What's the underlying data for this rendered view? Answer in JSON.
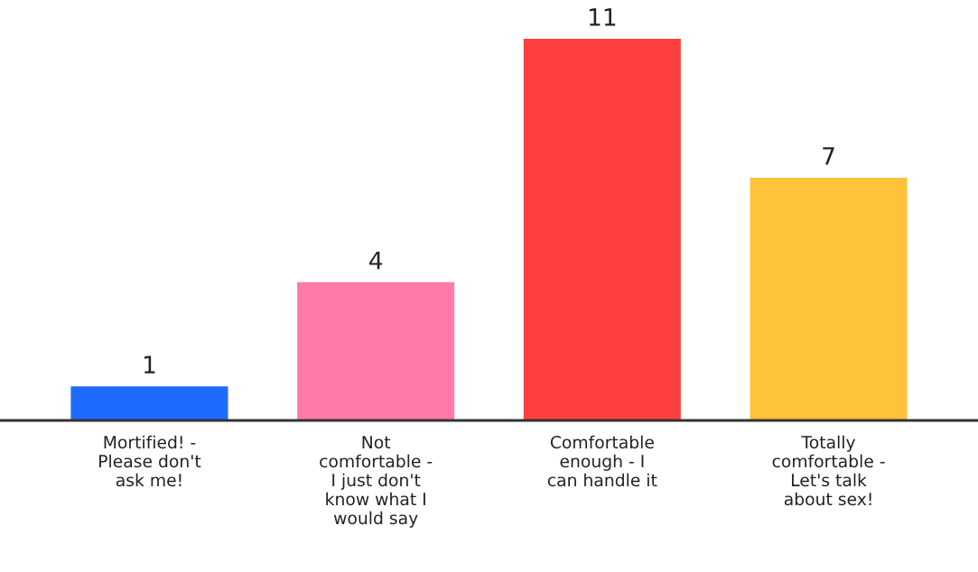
{
  "chart_data": {
    "type": "bar",
    "categories": [
      "Mortified! -\nPlease don't\nask me!",
      "Not\ncomfortable -\nI just don't\nknow what I\nwould say",
      "Comfortable\nenough - I\ncan handle it",
      "Totally\ncomfortable -\nLet's talk\nabout sex!"
    ],
    "values": [
      1,
      4,
      11,
      7
    ],
    "colors": [
      "#1f6bff",
      "#ff7aa8",
      "#ff4040",
      "#ffc23a"
    ],
    "data_labels": true,
    "grid": false
  }
}
